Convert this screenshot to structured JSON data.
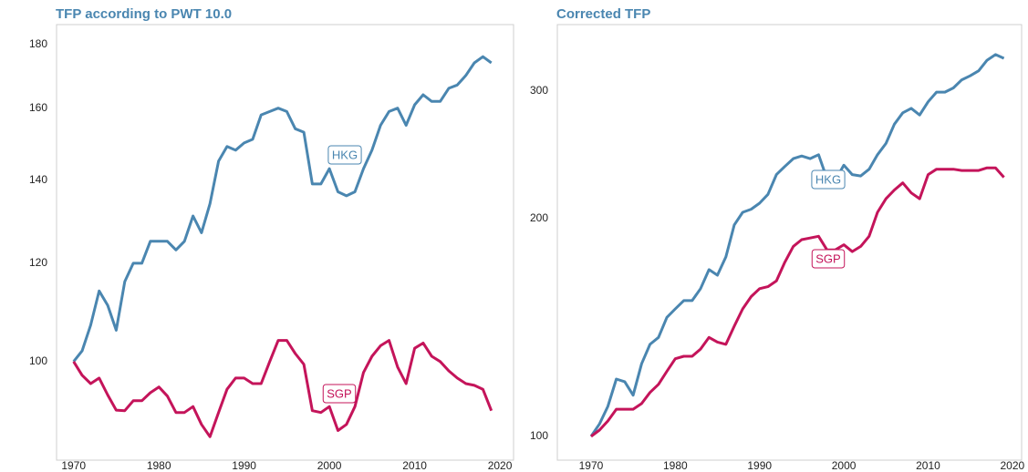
{
  "chart_data": [
    {
      "type": "line",
      "title": "TFP according to PWT 10.0",
      "log_y": true,
      "x": [
        1970,
        1971,
        1972,
        1973,
        1974,
        1975,
        1976,
        1977,
        1978,
        1979,
        1980,
        1981,
        1982,
        1983,
        1984,
        1985,
        1986,
        1987,
        1988,
        1989,
        1990,
        1991,
        1992,
        1993,
        1994,
        1995,
        1996,
        1997,
        1998,
        1999,
        2000,
        2001,
        2002,
        2003,
        2004,
        2005,
        2006,
        2007,
        2008,
        2009,
        2010,
        2011,
        2012,
        2013,
        2014,
        2015,
        2016,
        2017,
        2018,
        2019
      ],
      "xlim": [
        1968,
        2021.6
      ],
      "xticks": [
        1970,
        1980,
        1990,
        2000,
        2010,
        2020
      ],
      "ylim": [
        83.3,
        186.8
      ],
      "yticks": [
        100,
        120,
        140,
        160,
        180
      ],
      "series": [
        {
          "name": "HKG",
          "color": "#4a86b0",
          "values": [
            100,
            102,
            107,
            114,
            111,
            106,
            116,
            120,
            120,
            125,
            125,
            125,
            123,
            125,
            131,
            127,
            134,
            145,
            149,
            148,
            150,
            151,
            158,
            159,
            160,
            159,
            154,
            153,
            139,
            139,
            143,
            137,
            136,
            137,
            143,
            148,
            155,
            159,
            160,
            155,
            161,
            164,
            162,
            162,
            166,
            167,
            170,
            174,
            176,
            174
          ]
        },
        {
          "name": "SGP",
          "color": "#c4145a",
          "values": [
            100,
            97.5,
            96,
            97,
            94,
            91.4,
            91.3,
            93,
            93,
            94.4,
            95.4,
            93.8,
            91,
            91,
            92,
            89,
            87,
            91,
            95,
            97,
            97,
            96,
            96,
            100,
            104,
            104,
            101.5,
            99.5,
            91.3,
            91,
            92,
            88,
            89,
            92,
            98,
            101,
            103,
            104,
            99,
            96,
            102.5,
            103.5,
            101,
            100,
            98.3,
            97,
            96,
            95.7,
            95,
            91.3
          ]
        }
      ]
    },
    {
      "type": "line",
      "title": "Corrected TFP",
      "log_y": true,
      "x": [
        1970,
        1971,
        1972,
        1973,
        1974,
        1975,
        1976,
        1977,
        1978,
        1979,
        1980,
        1981,
        1982,
        1983,
        1984,
        1985,
        1986,
        1987,
        1988,
        1989,
        1990,
        1991,
        1992,
        1993,
        1994,
        1995,
        1996,
        1997,
        1998,
        1999,
        2000,
        2001,
        2002,
        2003,
        2004,
        2005,
        2006,
        2007,
        2008,
        2009,
        2010,
        2011,
        2012,
        2013,
        2014,
        2015,
        2016,
        2017,
        2018,
        2019
      ],
      "xlim": [
        1966,
        2021.1
      ],
      "xticks": [
        1970,
        1980,
        1990,
        2000,
        2010,
        2020
      ],
      "ylim": [
        92.7,
        370.7
      ],
      "yticks": [
        100,
        200,
        300
      ],
      "series": [
        {
          "name": "HKG",
          "color": "#4a86b0",
          "values": [
            100,
            104,
            110,
            120,
            119,
            114,
            126,
            134,
            137,
            146,
            150,
            154,
            154,
            160,
            170,
            167,
            177,
            196,
            204,
            206,
            210,
            216,
            230,
            236,
            242,
            244,
            242,
            245,
            227,
            226,
            237,
            230,
            229,
            234,
            245,
            254,
            270,
            280,
            284,
            278,
            290,
            299,
            299,
            303,
            311,
            315,
            320,
            331,
            337,
            333
          ]
        },
        {
          "name": "SGP",
          "color": "#c4145a",
          "values": [
            100,
            102,
            105,
            109,
            109,
            109,
            111,
            115,
            118,
            123,
            128,
            129,
            129,
            132,
            137,
            135,
            134,
            142,
            150,
            156,
            160,
            161,
            164,
            174,
            183,
            187,
            188,
            189,
            181,
            181,
            184,
            180,
            183,
            189,
            204,
            213,
            219,
            224,
            217,
            213,
            230,
            234,
            234,
            234,
            233,
            233,
            233,
            235,
            235,
            228
          ]
        }
      ]
    }
  ]
}
